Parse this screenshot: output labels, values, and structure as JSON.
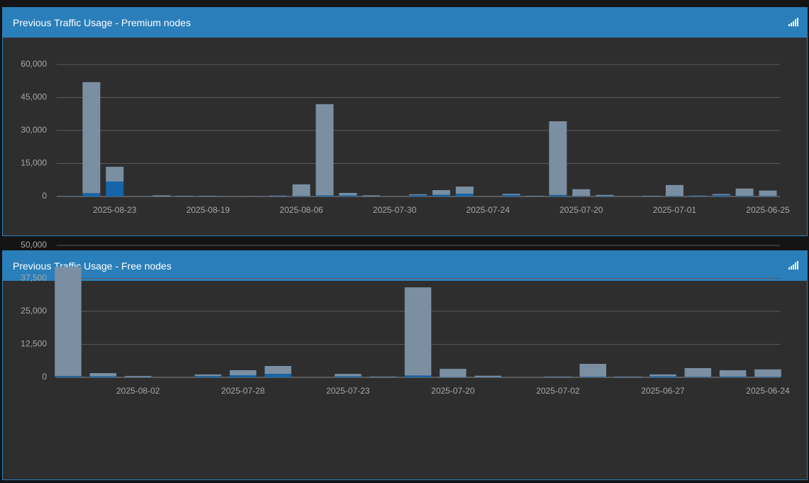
{
  "chart_data": [
    {
      "type": "bar",
      "stacked": true,
      "title": "Previous Traffic Usage - Premium nodes",
      "categories": [
        null,
        null,
        "2025-08-23",
        null,
        null,
        null,
        "2025-08-19",
        null,
        null,
        null,
        "2025-08-06",
        null,
        null,
        null,
        "2025-07-30",
        null,
        null,
        null,
        "2025-07-24",
        null,
        null,
        null,
        "2025-07-20",
        null,
        null,
        null,
        "2025-07-01",
        null,
        null,
        null,
        "2025-06-25"
      ],
      "series": [
        {
          "color": "#1565a8",
          "values": [
            100,
            1500,
            6800,
            0,
            100,
            100,
            100,
            0,
            50,
            150,
            200,
            500,
            500,
            100,
            0,
            600,
            800,
            1300,
            0,
            700,
            100,
            700,
            200,
            200,
            0,
            100,
            200,
            200,
            600,
            300,
            200
          ]
        },
        {
          "color": "#7b8fa3",
          "values": [
            100,
            50500,
            6700,
            100,
            400,
            200,
            200,
            0,
            150,
            250,
            5300,
            41500,
            1100,
            400,
            0,
            400,
            2100,
            3200,
            0,
            500,
            200,
            33500,
            3100,
            500,
            0,
            200,
            5000,
            200,
            500,
            3300,
            2500
          ]
        }
      ],
      "ylim": [
        0,
        60000
      ],
      "yticks": [
        0,
        {
          "value": 15000,
          "label": "15,000"
        },
        {
          "value": 30000,
          "label": "30,000"
        },
        {
          "value": 45000,
          "label": "45,000"
        },
        {
          "value": 60000,
          "label": "60,000"
        }
      ],
      "grid": true
    },
    {
      "type": "bar",
      "stacked": true,
      "title": "Previous Traffic Usage - Free nodes",
      "categories": [
        null,
        null,
        "2025-08-02",
        null,
        null,
        "2025-07-28",
        null,
        null,
        "2025-07-23",
        null,
        null,
        "2025-07-20",
        null,
        null,
        "2025-07-02",
        null,
        null,
        "2025-06-27",
        null,
        null,
        "2025-06-24"
      ],
      "series": [
        {
          "color": "#1565a8",
          "values": [
            500,
            400,
            100,
            0,
            500,
            800,
            1300,
            0,
            400,
            100,
            700,
            100,
            100,
            0,
            100,
            200,
            100,
            400,
            200,
            300,
            200
          ]
        },
        {
          "color": "#7b8fa3",
          "values": [
            41400,
            1200,
            400,
            0,
            600,
            1900,
            3000,
            0,
            900,
            200,
            33400,
            3100,
            500,
            0,
            200,
            4900,
            200,
            700,
            3300,
            2400,
            2800
          ]
        }
      ],
      "ylim": [
        0,
        50000
      ],
      "yticks": [
        0,
        {
          "value": 12500,
          "label": "12,500"
        },
        {
          "value": 25000,
          "label": "25,000"
        },
        {
          "value": 37500,
          "label": "37,500"
        },
        {
          "value": 50000,
          "label": "50,000"
        }
      ],
      "grid": true
    }
  ]
}
